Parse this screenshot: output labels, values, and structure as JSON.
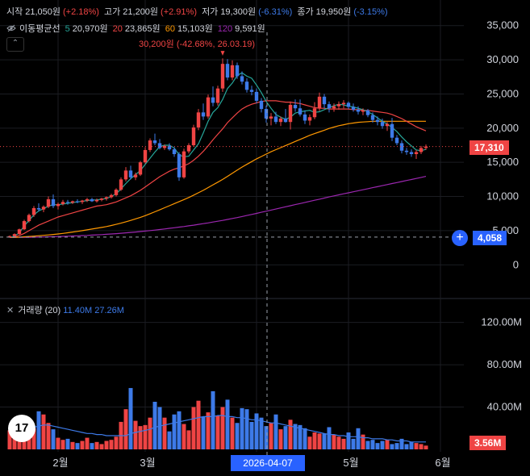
{
  "ohlc": {
    "open_label": "시작",
    "open": "21,050원",
    "open_chg": "(+2.18%)",
    "high_label": "고가",
    "high": "21,200원",
    "high_chg": "(+2.91%)",
    "low_label": "저가",
    "low": "19,300원",
    "low_chg": "(-6.31%)",
    "close_label": "종가",
    "close": "19,950원",
    "close_chg": "(-3.15%)"
  },
  "ma_legend": {
    "title": "이동평균선",
    "items": [
      {
        "period": "5",
        "value": "20,970원",
        "color": "#26a69a"
      },
      {
        "period": "20",
        "value": "23,865원",
        "color": "#ef4444"
      },
      {
        "period": "60",
        "value": "15,103원",
        "color": "#ff9800"
      },
      {
        "period": "120",
        "value": "9,591원",
        "color": "#9c27b0"
      }
    ]
  },
  "collapse_glyph": "⌃",
  "annotation": "30,200원 (-42.68%, 26.03.19)",
  "volume_legend": {
    "title": "거래량 (20)",
    "v1": "11.40M",
    "v2": "27.26M"
  },
  "logo_text": "17",
  "current_price_label": "17,310",
  "crosshair_price_label": "4,058",
  "crosshair_date_label": "2026-04-07",
  "current_volume_label": "3.56M",
  "plus_glyph": "+",
  "colors": {
    "up": "#ef4444",
    "down": "#3d7ae8",
    "bg": "#000000",
    "grid": "#1b1d22"
  },
  "chart_data": [
    {
      "type": "candlestick",
      "title": "",
      "x_ticks": [
        "2월",
        "3월",
        "4월",
        "5월",
        "6월"
      ],
      "y_ticks": [
        "35,000",
        "30,000",
        "25,000",
        "20,000",
        "15,000",
        "10,000",
        "5,000",
        "0"
      ],
      "ylim": [
        -1500,
        36500
      ],
      "candles": [
        [
          4000,
          4300,
          4000,
          4200
        ],
        [
          4200,
          4600,
          4100,
          4500
        ],
        [
          4500,
          5300,
          4400,
          5200
        ],
        [
          5200,
          6600,
          5100,
          6400
        ],
        [
          6400,
          7500,
          6200,
          7300
        ],
        [
          7300,
          8600,
          7000,
          8300
        ],
        [
          8300,
          9000,
          7800,
          8100
        ],
        [
          8100,
          8700,
          7700,
          8500
        ],
        [
          8500,
          10000,
          8300,
          9600
        ],
        [
          9600,
          10300,
          8300,
          8600
        ],
        [
          8600,
          9100,
          8100,
          8900
        ],
        [
          8900,
          9500,
          8700,
          9200
        ],
        [
          9200,
          9500,
          8800,
          9100
        ],
        [
          9100,
          9400,
          8900,
          9300
        ],
        [
          9300,
          9600,
          9000,
          9200
        ],
        [
          9200,
          9500,
          8900,
          9400
        ],
        [
          9400,
          9800,
          9200,
          9600
        ],
        [
          9600,
          9800,
          9200,
          9300
        ],
        [
          9300,
          9700,
          9100,
          9500
        ],
        [
          9500,
          9800,
          9300,
          9700
        ],
        [
          9700,
          10000,
          9400,
          9900
        ],
        [
          9900,
          10400,
          9700,
          10200
        ],
        [
          10200,
          11200,
          10000,
          11000
        ],
        [
          11000,
          12800,
          10800,
          12500
        ],
        [
          12500,
          14300,
          12200,
          13800
        ],
        [
          13800,
          14500,
          12500,
          12800
        ],
        [
          12800,
          13500,
          12400,
          13200
        ],
        [
          13200,
          15200,
          13000,
          15000
        ],
        [
          15000,
          17200,
          14800,
          16800
        ],
        [
          16800,
          18500,
          16500,
          18200
        ],
        [
          18200,
          19200,
          17500,
          17800
        ],
        [
          17800,
          18400,
          16900,
          17100
        ],
        [
          17100,
          17600,
          16800,
          17400
        ],
        [
          17400,
          17800,
          16700,
          16900
        ],
        [
          16900,
          17200,
          15800,
          16200
        ],
        [
          16200,
          16500,
          12300,
          12800
        ],
        [
          12800,
          17000,
          12600,
          16600
        ],
        [
          16600,
          17800,
          16300,
          17500
        ],
        [
          17500,
          20500,
          17300,
          20100
        ],
        [
          20100,
          22800,
          19700,
          22300
        ],
        [
          22300,
          23600,
          21200,
          21700
        ],
        [
          21700,
          24900,
          21400,
          24500
        ],
        [
          24500,
          26100,
          23200,
          23700
        ],
        [
          23700,
          26200,
          23300,
          25800
        ],
        [
          25800,
          30200,
          25300,
          29400
        ],
        [
          29400,
          30100,
          27000,
          27400
        ],
        [
          27400,
          29900,
          27000,
          29200
        ],
        [
          29200,
          29600,
          27200,
          27600
        ],
        [
          27600,
          28300,
          26400,
          26800
        ],
        [
          26800,
          27300,
          25200,
          25600
        ],
        [
          25600,
          26200,
          24800,
          25300
        ],
        [
          25300,
          25800,
          23600,
          24000
        ],
        [
          24000,
          24400,
          22300,
          22800
        ],
        [
          22800,
          23300,
          20800,
          21400
        ],
        [
          21400,
          22200,
          20400,
          21700
        ],
        [
          21700,
          22400,
          20600,
          20900
        ],
        [
          20900,
          21700,
          20300,
          21400
        ],
        [
          21400,
          22800,
          20800,
          20900
        ],
        [
          20900,
          23900,
          19800,
          23400
        ],
        [
          23400,
          24200,
          22400,
          22900
        ],
        [
          22900,
          24200,
          21700,
          22000
        ],
        [
          22000,
          22600,
          20600,
          21100
        ],
        [
          21100,
          22000,
          20400,
          21600
        ],
        [
          21600,
          23800,
          21300,
          22900
        ],
        [
          22900,
          25200,
          22500,
          24600
        ],
        [
          24600,
          25000,
          22900,
          23500
        ],
        [
          23500,
          23900,
          22300,
          22900
        ],
        [
          22900,
          23600,
          22400,
          23200
        ],
        [
          23200,
          23900,
          22700,
          23500
        ],
        [
          23500,
          24100,
          22900,
          23700
        ],
        [
          23700,
          23900,
          22800,
          23100
        ],
        [
          23100,
          23600,
          22400,
          22700
        ],
        [
          22700,
          23200,
          22000,
          22400
        ],
        [
          22400,
          22900,
          21900,
          22600
        ],
        [
          22600,
          22800,
          21600,
          21900
        ],
        [
          21900,
          22300,
          20800,
          21200
        ],
        [
          21200,
          21700,
          20400,
          20900
        ],
        [
          20900,
          21400,
          19900,
          20300
        ],
        [
          20300,
          20900,
          19600,
          20600
        ],
        [
          20600,
          21500,
          18100,
          18600
        ],
        [
          18600,
          19000,
          17500,
          17800
        ],
        [
          17800,
          18200,
          16300,
          16700
        ],
        [
          16700,
          17100,
          16100,
          16500
        ],
        [
          16500,
          16900,
          15800,
          16200
        ],
        [
          16200,
          16800,
          15500,
          16500
        ],
        [
          16500,
          17400,
          16200,
          17100
        ],
        [
          17100,
          17600,
          16800,
          17310
        ]
      ],
      "ma5": [
        4000,
        4200,
        4700,
        5700,
        6500,
        7300,
        7900,
        8200,
        8600,
        8800,
        8800,
        8900,
        9000,
        9100,
        9200,
        9300,
        9400,
        9500,
        9500,
        9600,
        9700,
        10000,
        10400,
        11100,
        11900,
        12600,
        13200,
        13800,
        14700,
        15600,
        16500,
        17300,
        17500,
        17500,
        17100,
        16100,
        15800,
        15900,
        16800,
        17700,
        19300,
        21000,
        22300,
        23000,
        24200,
        25800,
        26600,
        27700,
        28100,
        27600,
        27300,
        26300,
        25200,
        23900,
        22900,
        22000,
        21600,
        21300,
        21600,
        22200,
        22400,
        22500,
        22600,
        22300,
        22400,
        22700,
        23000,
        23300,
        23500,
        23400,
        23200,
        23100,
        22900,
        22700,
        22400,
        22000,
        21500,
        21000,
        20600,
        20100,
        19500,
        18700,
        18000,
        17400,
        16800,
        16700,
        16900
      ],
      "ma20": [
        4000,
        4100,
        4300,
        4600,
        5000,
        5400,
        5800,
        6100,
        6400,
        6700,
        7000,
        7200,
        7400,
        7600,
        7800,
        8000,
        8200,
        8400,
        8600,
        8700,
        8800,
        9000,
        9200,
        9500,
        9800,
        10100,
        10500,
        10900,
        11400,
        11900,
        12400,
        12900,
        13300,
        13700,
        14000,
        14200,
        14500,
        14800,
        15300,
        15900,
        16600,
        17400,
        18300,
        19100,
        19900,
        20800,
        21500,
        22200,
        22800,
        23200,
        23500,
        23700,
        23900,
        24000,
        24000,
        24000,
        23900,
        23800,
        23800,
        23700,
        23600,
        23400,
        23200,
        23000,
        22900,
        22900,
        22800,
        22800,
        22800,
        22800,
        22800,
        22700,
        22700,
        22600,
        22600,
        22500,
        22400,
        22300,
        22200,
        22000,
        21700,
        21400,
        21000,
        20600,
        20200,
        19900,
        19600
      ],
      "ma60": [
        4000,
        4020,
        4050,
        4100,
        4150,
        4200,
        4260,
        4320,
        4380,
        4450,
        4520,
        4600,
        4700,
        4800,
        4900,
        5000,
        5120,
        5240,
        5360,
        5480,
        5600,
        5760,
        5920,
        6100,
        6300,
        6500,
        6720,
        6950,
        7200,
        7480,
        7760,
        8050,
        8350,
        8650,
        8950,
        9250,
        9550,
        9850,
        10200,
        10550,
        10900,
        11300,
        11700,
        12100,
        12500,
        12950,
        13400,
        13850,
        14300,
        14700,
        15100,
        15500,
        15850,
        16200,
        16550,
        16850,
        17150,
        17450,
        17750,
        18050,
        18350,
        18650,
        18950,
        19200,
        19450,
        19700,
        19950,
        20150,
        20350,
        20500,
        20650,
        20750,
        20850,
        20900,
        20950,
        21000,
        21000,
        21000,
        21000,
        21000,
        21000,
        21000,
        21000,
        21000,
        21000,
        21000,
        21000
      ],
      "ma120": [
        4000,
        4010,
        4020,
        4030,
        4040,
        4050,
        4060,
        4080,
        4100,
        4120,
        4140,
        4160,
        4190,
        4220,
        4250,
        4280,
        4310,
        4350,
        4390,
        4430,
        4470,
        4520,
        4570,
        4620,
        4680,
        4740,
        4800,
        4870,
        4940,
        5010,
        5090,
        5170,
        5250,
        5340,
        5430,
        5520,
        5610,
        5710,
        5810,
        5920,
        6030,
        6140,
        6260,
        6380,
        6500,
        6640,
        6780,
        6920,
        7070,
        7220,
        7370,
        7530,
        7690,
        7850,
        8010,
        8170,
        8330,
        8490,
        8650,
        8810,
        8970,
        9130,
        9290,
        9450,
        9610,
        9770,
        9930,
        10090,
        10240,
        10390,
        10540,
        10690,
        10840,
        10990,
        11140,
        11290,
        11440,
        11590,
        11740,
        11890,
        12040,
        12190,
        12340,
        12490,
        12640,
        12790,
        12940
      ]
    },
    {
      "type": "bar",
      "title": "",
      "y_ticks": [
        "120.00M",
        "80.00M",
        "40.00M"
      ],
      "ylim": [
        0,
        135
      ],
      "volumes": [
        18,
        22,
        17,
        30,
        27,
        20,
        36,
        33,
        25,
        19,
        11,
        9,
        10,
        7,
        6,
        8,
        11,
        6,
        7,
        5,
        8,
        9,
        12,
        26,
        38,
        58,
        27,
        22,
        23,
        30,
        45,
        40,
        30,
        17,
        33,
        36,
        24,
        18,
        40,
        46,
        31,
        35,
        55,
        32,
        40,
        47,
        30,
        25,
        39,
        38,
        26,
        34,
        30,
        22,
        25,
        33,
        19,
        22,
        28,
        24,
        23,
        20,
        12,
        16,
        15,
        15,
        21,
        14,
        12,
        10,
        16,
        10,
        20,
        14,
        8,
        9,
        6,
        8,
        9,
        5,
        6,
        10,
        5,
        7,
        6,
        5,
        3.56
      ],
      "ma20_volume": [
        18,
        18,
        19,
        20,
        21,
        21,
        22,
        23,
        23,
        22,
        21,
        20,
        19,
        18,
        17,
        16,
        15,
        15,
        14,
        14,
        13,
        13,
        13,
        13,
        13,
        15,
        16,
        17,
        18,
        19,
        21,
        22,
        23,
        24,
        25,
        26,
        27,
        28,
        29,
        30,
        31,
        31,
        31,
        32,
        32,
        31,
        31,
        30,
        30,
        29,
        28,
        28,
        27,
        26,
        25,
        25,
        24,
        23,
        22,
        21,
        20,
        19,
        18,
        17,
        16,
        15,
        14,
        14,
        13,
        13,
        12,
        12,
        12,
        11,
        11,
        10,
        10,
        10,
        9,
        9,
        8,
        8,
        8,
        7,
        7,
        7,
        7
      ]
    }
  ]
}
